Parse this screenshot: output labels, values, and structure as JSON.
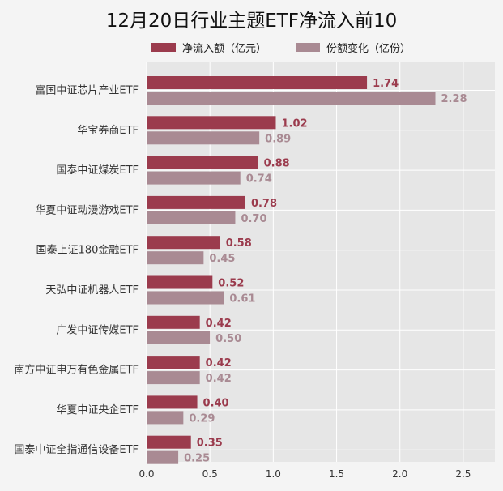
{
  "chart_data": {
    "type": "bar",
    "orientation": "horizontal",
    "title": "12月20日行业主题ETF净流入前10",
    "categories": [
      "富国中证芯片产业ETF",
      "华宝券商ETF",
      "国泰中证煤炭ETF",
      "华夏中证动漫游戏ETF",
      "国泰上证180金融ETF",
      "天弘中证机器人ETF",
      "广发中证传媒ETF",
      "南方中证申万有色金属ETF",
      "华夏中证央企ETF",
      "国泰中证全指通信设备ETF"
    ],
    "series": [
      {
        "name": "净流入额（亿元）",
        "color": "#9b3b4d",
        "values": [
          1.74,
          1.02,
          0.88,
          0.78,
          0.58,
          0.52,
          0.42,
          0.42,
          0.4,
          0.35
        ]
      },
      {
        "name": "份额变化（亿份）",
        "color": "#a98a93",
        "values": [
          2.28,
          0.89,
          0.74,
          0.7,
          0.45,
          0.61,
          0.5,
          0.42,
          0.29,
          0.25
        ]
      }
    ],
    "xlim": [
      0,
      2.75
    ],
    "xticks": [
      0.0,
      0.5,
      1.0,
      1.5,
      2.0,
      2.5
    ],
    "tick_labels": [
      "0.0",
      "0.5",
      "1.0",
      "1.5",
      "2.0",
      "2.5"
    ],
    "value_labels": [
      [
        "1.74",
        "1.02",
        "0.88",
        "0.78",
        "0.58",
        "0.52",
        "0.42",
        "0.42",
        "0.40",
        "0.35"
      ],
      [
        "2.28",
        "0.89",
        "0.74",
        "0.70",
        "0.45",
        "0.61",
        "0.50",
        "0.42",
        "0.29",
        "0.25"
      ]
    ],
    "grid": true,
    "legend_position": "top"
  }
}
